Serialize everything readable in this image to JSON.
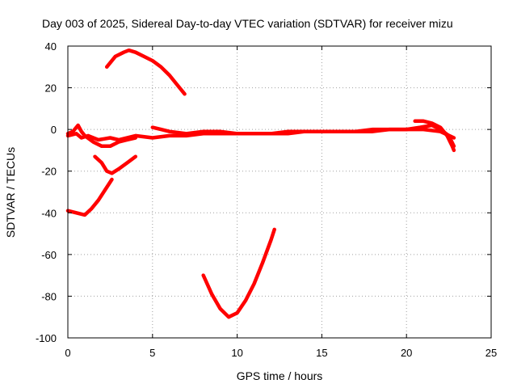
{
  "chart_data": {
    "type": "scatter",
    "title": "Day 003 of 2025, Sidereal Day-to-day VTEC variation (SDTVAR) for receiver mizu",
    "xlabel": "GPS time / hours",
    "ylabel": "SDTVAR / TECUs",
    "xlim": [
      0,
      25
    ],
    "ylim": [
      -100,
      40
    ],
    "xticks": [
      "0",
      "5",
      "10",
      "15",
      "20",
      "25"
    ],
    "yticks": [
      "40",
      "20",
      "0",
      "-20",
      "-40",
      "-60",
      "-80",
      "-100"
    ],
    "grid": true,
    "color": "#ff0000",
    "series": [
      {
        "name": "arc-main",
        "x": [
          0.0,
          0.5,
          0.8,
          1.2,
          1.8,
          2.5,
          3.0,
          4.0,
          5.0,
          6.0,
          7.0,
          8.0,
          9.0,
          10.0,
          11.0,
          12.0,
          13.0,
          14.0,
          15.0,
          16.0,
          17.0,
          18.0,
          19.0,
          20.0,
          21.0,
          22.0,
          22.8
        ],
        "y": [
          -3,
          -2,
          -4,
          -3,
          -5,
          -4,
          -5,
          -3,
          -4,
          -3,
          -3,
          -2,
          -2,
          -2,
          -2,
          -2,
          -2,
          -1,
          -1,
          -1,
          -1,
          -1,
          0,
          0,
          0,
          -1,
          -4
        ]
      },
      {
        "name": "arc-early",
        "x": [
          0.0,
          0.3,
          0.6,
          0.8,
          1.0,
          1.5,
          2.0,
          2.5,
          3.0,
          3.5,
          4.0
        ],
        "y": [
          -2,
          -1,
          2,
          -1,
          -3,
          -6,
          -8,
          -8,
          -6,
          -5,
          -4
        ]
      },
      {
        "name": "arc-high",
        "x": [
          2.3,
          2.8,
          3.3,
          3.6,
          4.0,
          4.5,
          5.0,
          5.5,
          6.0,
          6.5,
          6.9
        ],
        "y": [
          30,
          35,
          37,
          38,
          37,
          35,
          33,
          30,
          26,
          21,
          17
        ]
      },
      {
        "name": "arc-mid",
        "x": [
          1.6,
          2.0,
          2.3,
          2.6,
          3.0,
          3.5,
          4.0
        ],
        "y": [
          -13,
          -16,
          -20,
          -21,
          -19,
          -16,
          -13
        ]
      },
      {
        "name": "arc-low",
        "x": [
          0.0,
          0.5,
          1.0,
          1.4,
          1.8,
          2.2,
          2.6
        ],
        "y": [
          -39,
          -40,
          -41,
          -38,
          -34,
          -29,
          -24
        ]
      },
      {
        "name": "arc-dip",
        "x": [
          8.0,
          8.5,
          9.0,
          9.5,
          10.0,
          10.5,
          11.0,
          11.5,
          12.0,
          12.2
        ],
        "y": [
          -70,
          -79,
          -86,
          -90,
          -88,
          -82,
          -74,
          -64,
          -53,
          -48
        ]
      },
      {
        "name": "arc-late",
        "x": [
          5.0,
          5.5,
          6.0,
          7.0,
          8.0,
          9.0,
          10.0,
          11.0,
          12.0,
          13.0,
          14.0,
          15.0,
          16.0,
          17.0,
          18.0,
          19.0,
          20.0,
          20.8,
          21.5,
          22.0,
          22.5,
          22.8
        ],
        "y": [
          1,
          0,
          -1,
          -2,
          -1,
          -1,
          -2,
          -2,
          -2,
          -1,
          -1,
          -1,
          -1,
          -1,
          0,
          0,
          0,
          1,
          2,
          0,
          -3,
          -8
        ]
      },
      {
        "name": "arc-end",
        "x": [
          20.5,
          21.0,
          21.5,
          22.0,
          22.4,
          22.7,
          22.8
        ],
        "y": [
          4,
          4,
          3,
          1,
          -3,
          -8,
          -10
        ]
      }
    ]
  }
}
